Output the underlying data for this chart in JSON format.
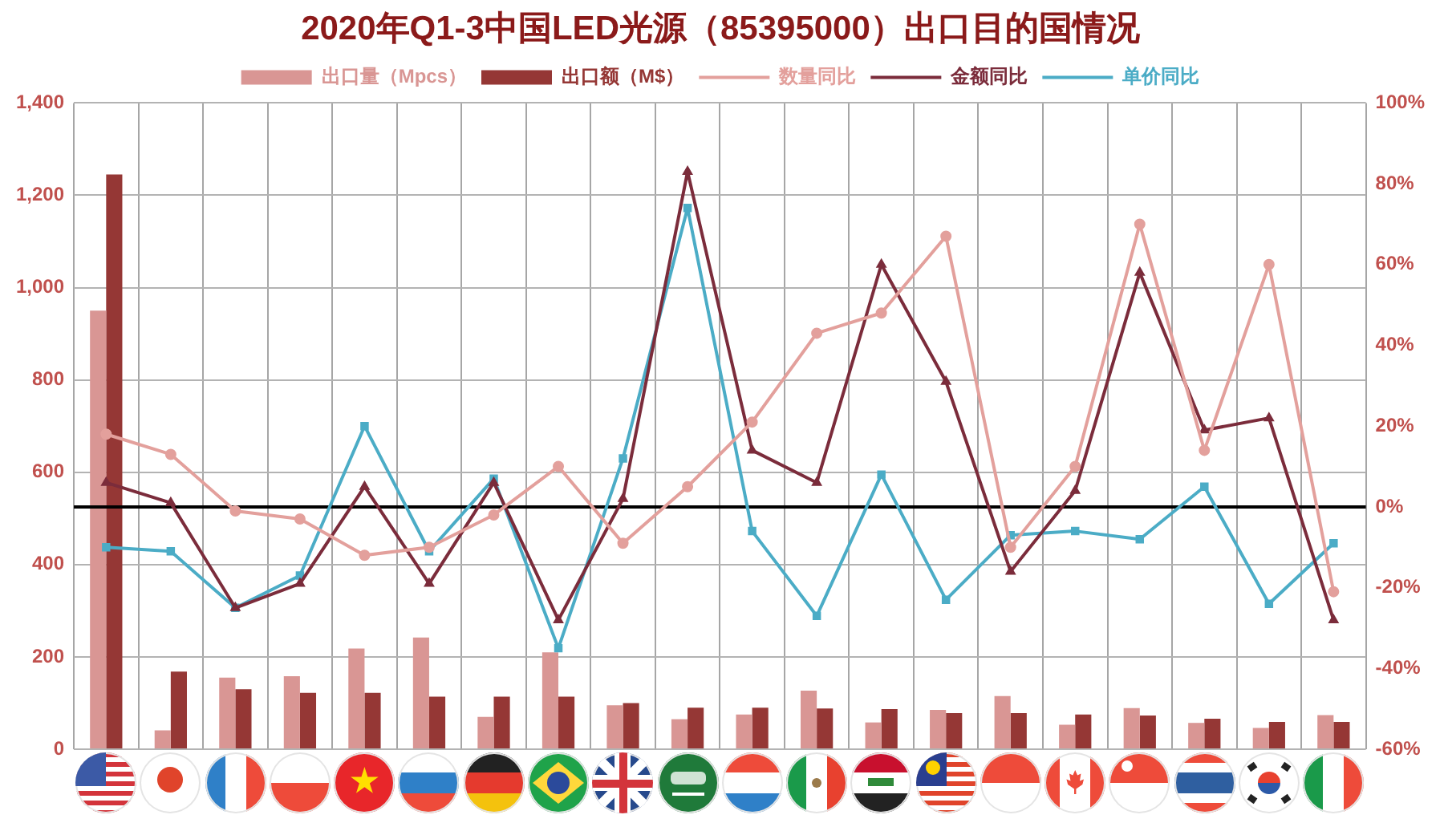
{
  "chart_data": {
    "type": "bar",
    "title": "2020年Q1-3中国LED光源（85395000）出口目的国情况",
    "categories": [
      null,
      null,
      null,
      null,
      null,
      null,
      null,
      null,
      null,
      null,
      null,
      null,
      null,
      null,
      null,
      null,
      null,
      null,
      null,
      null
    ],
    "series": [
      {
        "name": "出口量（Mpcs）",
        "color": "#d99694",
        "values": [
          950,
          41,
          155,
          158,
          218,
          242,
          70,
          210,
          95,
          65,
          75,
          127,
          58,
          85,
          115,
          53,
          89,
          57,
          46,
          74
        ]
      },
      {
        "name": "出口额（M$）",
        "color": "#953735",
        "values": [
          1245,
          168,
          130,
          122,
          122,
          114,
          114,
          114,
          100,
          90,
          90,
          88,
          87,
          78,
          78,
          75,
          73,
          66,
          59,
          59
        ]
      },
      {
        "name": "数量同比",
        "type": "line",
        "axis": "y2",
        "color": "#e3a09c",
        "marker": "circle",
        "values": [
          18,
          13,
          -1,
          -3,
          -12,
          -10,
          -2,
          10,
          -9,
          5,
          21,
          43,
          48,
          67,
          -10,
          10,
          70,
          14,
          60,
          -21
        ]
      },
      {
        "name": "金额同比",
        "type": "line",
        "axis": "y2",
        "color": "#7b2c3b",
        "marker": "triangle",
        "values": [
          6,
          1,
          -25,
          -19,
          5,
          -19,
          6,
          -28,
          2,
          83,
          14,
          6,
          60,
          31,
          -16,
          4,
          58,
          19,
          22,
          -28
        ]
      },
      {
        "name": "单价同比",
        "type": "line",
        "axis": "y2",
        "color": "#4bacc6",
        "marker": "square",
        "values": [
          -10,
          -11,
          -25,
          -17,
          20,
          -11,
          7,
          -35,
          12,
          74,
          -6,
          -27,
          8,
          -23,
          -7,
          -6,
          -8,
          5,
          -24,
          -9
        ]
      }
    ],
    "ylim": [
      0,
      1400
    ],
    "yticks": [
      0,
      200,
      400,
      600,
      800,
      {
        "value": 1000,
        "label": "1,000"
      },
      {
        "value": 1200,
        "label": "1,200"
      },
      {
        "value": 1400,
        "label": "1,400"
      }
    ],
    "y2lim": [
      -60,
      100
    ],
    "y2ticks": [
      {
        "value": -60,
        "label": "-60%"
      },
      {
        "value": -40,
        "label": "-40%"
      },
      {
        "value": -20,
        "label": "-20%"
      },
      {
        "value": 0,
        "label": "0%"
      },
      {
        "value": 20,
        "label": "20%"
      },
      {
        "value": 40,
        "label": "40%"
      },
      {
        "value": 60,
        "label": "60%"
      },
      {
        "value": 80,
        "label": "80%"
      },
      {
        "value": 100,
        "label": "100%"
      }
    ],
    "ref_lines": [
      {
        "axis": "y2",
        "value": 0,
        "color": "#000000"
      }
    ],
    "grid": true,
    "legend": "top"
  }
}
